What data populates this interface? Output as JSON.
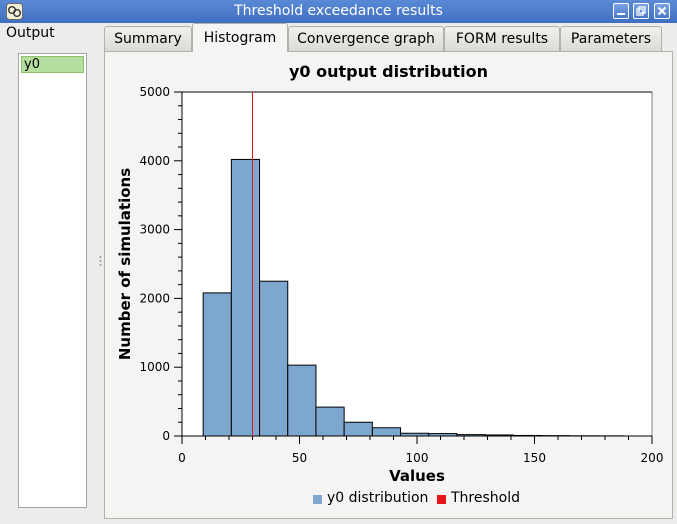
{
  "window": {
    "title": "Threshold exceedance results"
  },
  "sidebar": {
    "label": "Output",
    "items": [
      {
        "label": "y0"
      }
    ]
  },
  "tabs": [
    {
      "label": "Summary"
    },
    {
      "label": "Histogram"
    },
    {
      "label": "Convergence graph"
    },
    {
      "label": "FORM results"
    },
    {
      "label": "Parameters"
    }
  ],
  "colors": {
    "bars": "#7ea7d0",
    "threshold": "#e8141c",
    "titlebar": "#4a7bc9",
    "selected": "#b6dea0"
  },
  "chart_data": {
    "type": "bar",
    "title": "y0 output distribution",
    "xlabel": "Values",
    "ylabel": "Number of simulations",
    "xlim": [
      0,
      200
    ],
    "ylim": [
      0,
      5000
    ],
    "xticks": [
      0,
      50,
      100,
      150,
      200
    ],
    "yticks": [
      0,
      1000,
      2000,
      3000,
      4000,
      5000
    ],
    "bins": [
      {
        "x0": 9,
        "x1": 21,
        "count": 2080
      },
      {
        "x0": 21,
        "x1": 33,
        "count": 4020
      },
      {
        "x0": 33,
        "x1": 45,
        "count": 2250
      },
      {
        "x0": 45,
        "x1": 57,
        "count": 1030
      },
      {
        "x0": 57,
        "x1": 69,
        "count": 420
      },
      {
        "x0": 69,
        "x1": 81,
        "count": 200
      },
      {
        "x0": 81,
        "x1": 93,
        "count": 120
      },
      {
        "x0": 93,
        "x1": 105,
        "count": 40
      },
      {
        "x0": 105,
        "x1": 117,
        "count": 35
      },
      {
        "x0": 117,
        "x1": 129,
        "count": 20
      },
      {
        "x0": 129,
        "x1": 141,
        "count": 15
      },
      {
        "x0": 141,
        "x1": 153,
        "count": 8
      },
      {
        "x0": 153,
        "x1": 165,
        "count": 5
      },
      {
        "x0": 165,
        "x1": 177,
        "count": 3
      },
      {
        "x0": 177,
        "x1": 188,
        "count": 2
      }
    ],
    "threshold": 30,
    "legend": [
      {
        "label": "y0 distribution",
        "color": "#7ea7d0"
      },
      {
        "label": "Threshold",
        "color": "#e8141c"
      }
    ],
    "legend_position": "bottom"
  }
}
